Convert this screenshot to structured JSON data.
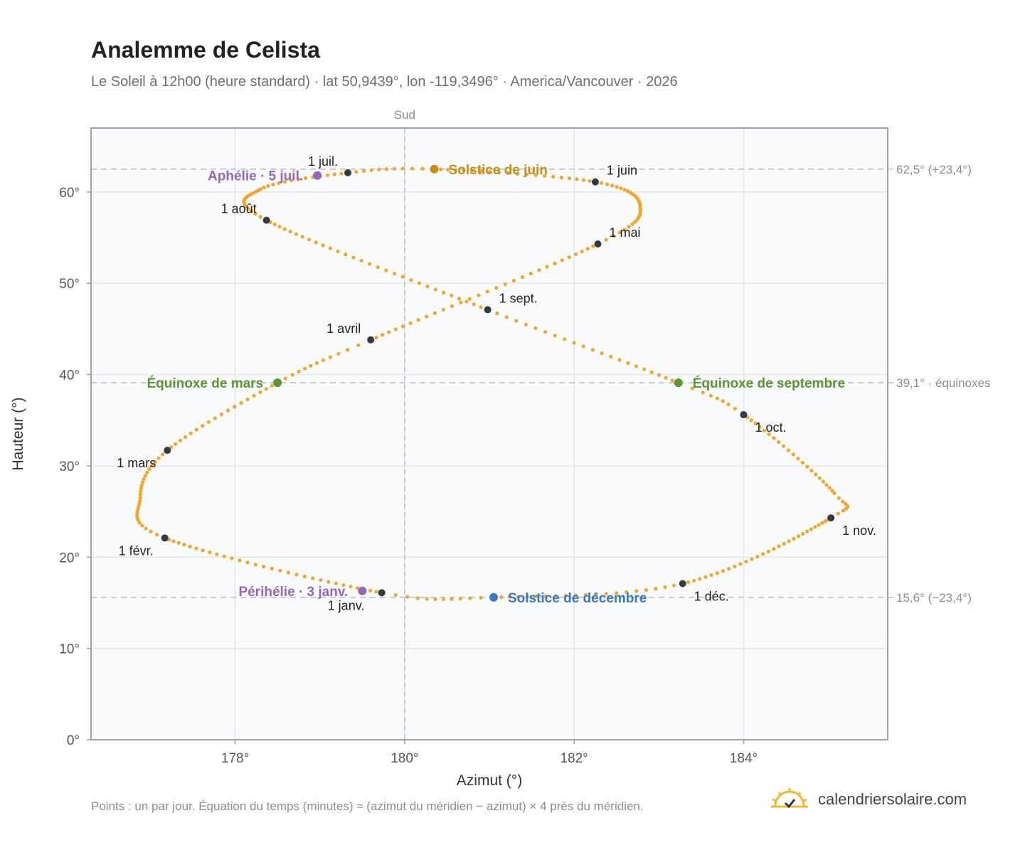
{
  "title": "Analemme de Celista",
  "subtitle": "Le Soleil à 12h00 (heure standard) · lat 50,9439°, lon -119,3496° · America/Vancouver · 2026",
  "footnote": "Points : un par jour. Équation du temps (minutes) ≈ (azimut du méridien − azimut) × 4 près du méridien.",
  "brand": {
    "name": "calendriersolaire.com",
    "icon": "sun-logo-icon"
  },
  "colors": {
    "curve": "#f2a62a",
    "month_marker": "#333a40",
    "solstice_june": "#c98d14",
    "solstice_december": "#3a78c0",
    "equinox": "#5c9634",
    "apsis": "#9467bd",
    "guide": "#b8bec6",
    "plot_bg": "#f8fafc"
  },
  "chart_data": {
    "type": "scatter",
    "xlabel": "Azimut (°)",
    "ylabel": "Hauteur (°)",
    "xlim": [
      176.3,
      185.7
    ],
    "ylim": [
      0,
      67
    ],
    "xticks": [
      {
        "value": 178,
        "label": "178°"
      },
      {
        "value": 180,
        "label": "180°"
      },
      {
        "value": 182,
        "label": "182°"
      },
      {
        "value": 184,
        "label": "184°"
      }
    ],
    "yticks": [
      {
        "value": 0,
        "label": "0°"
      },
      {
        "value": 10,
        "label": "10°"
      },
      {
        "value": 20,
        "label": "20°"
      },
      {
        "value": 30,
        "label": "30°"
      },
      {
        "value": 40,
        "label": "40°"
      },
      {
        "value": 50,
        "label": "50°"
      },
      {
        "value": 60,
        "label": "60°"
      }
    ],
    "grid": true,
    "meridian": {
      "x": 180,
      "label": "Sud"
    },
    "reference_lines": [
      {
        "y": 62.5,
        "label": "62,5° (+23,4°)"
      },
      {
        "y": 39.1,
        "label": "39,1° · équinoxes"
      },
      {
        "y": 15.6,
        "label": "15,6° (−23,4°)"
      }
    ],
    "daily_series": {
      "name": "daily-sun-position",
      "points_per_year": 365,
      "path_points": [
        {
          "day": 0,
          "x": 179.73,
          "y": 16.1
        },
        {
          "day": 31,
          "x": 177.17,
          "y": 22.1
        },
        {
          "day": 45,
          "x": 176.88,
          "y": 26.5
        },
        {
          "day": 59,
          "x": 177.2,
          "y": 31.7
        },
        {
          "day": 78,
          "x": 178.5,
          "y": 39.1
        },
        {
          "day": 90,
          "x": 179.6,
          "y": 43.8
        },
        {
          "day": 120,
          "x": 182.28,
          "y": 54.3
        },
        {
          "day": 135,
          "x": 182.78,
          "y": 58.4
        },
        {
          "day": 151,
          "x": 182.25,
          "y": 61.1
        },
        {
          "day": 171,
          "x": 180.35,
          "y": 62.5
        },
        {
          "day": 181,
          "x": 179.33,
          "y": 62.1
        },
        {
          "day": 195,
          "x": 178.3,
          "y": 60.3
        },
        {
          "day": 212,
          "x": 178.37,
          "y": 56.9
        },
        {
          "day": 243,
          "x": 180.98,
          "y": 47.1
        },
        {
          "day": 265,
          "x": 183.23,
          "y": 39.1
        },
        {
          "day": 273,
          "x": 184.0,
          "y": 35.6
        },
        {
          "day": 295,
          "x": 185.07,
          "y": 27.0
        },
        {
          "day": 304,
          "x": 185.03,
          "y": 24.3
        },
        {
          "day": 334,
          "x": 183.28,
          "y": 17.1
        },
        {
          "day": 354,
          "x": 181.05,
          "y": 15.6
        },
        {
          "day": 365,
          "x": 179.73,
          "y": 16.1
        }
      ]
    },
    "month_markers": [
      {
        "label": "1 janv.",
        "x": 179.73,
        "y": 16.1,
        "pos": "below-left"
      },
      {
        "label": "1 févr.",
        "x": 177.17,
        "y": 22.1,
        "pos": "below-left"
      },
      {
        "label": "1 mars",
        "x": 177.2,
        "y": 31.7,
        "pos": "below-left"
      },
      {
        "label": "1 avril",
        "x": 179.6,
        "y": 43.8,
        "pos": "above-left"
      },
      {
        "label": "1 mai",
        "x": 182.28,
        "y": 54.3,
        "pos": "above-right"
      },
      {
        "label": "1 juin",
        "x": 182.25,
        "y": 61.1,
        "pos": "above-right"
      },
      {
        "label": "1 juil.",
        "x": 179.33,
        "y": 62.1,
        "pos": "above-left"
      },
      {
        "label": "1 août",
        "x": 178.37,
        "y": 56.9,
        "pos": "above-left"
      },
      {
        "label": "1 sept.",
        "x": 180.98,
        "y": 47.1,
        "pos": "above-right"
      },
      {
        "label": "1 oct.",
        "x": 184.0,
        "y": 35.6,
        "pos": "below-right"
      },
      {
        "label": "1 nov.",
        "x": 185.03,
        "y": 24.3,
        "pos": "below-right"
      },
      {
        "label": "1 déc.",
        "x": 183.28,
        "y": 17.1,
        "pos": "below-right"
      }
    ],
    "events": [
      {
        "label": "Solstice de juin",
        "x": 180.35,
        "y": 62.5,
        "color": "#c98d14",
        "side": "right"
      },
      {
        "label": "Aphélie · 5 juil.",
        "x": 178.97,
        "y": 61.8,
        "color": "#9467bd",
        "side": "left"
      },
      {
        "label": "Équinoxe de mars",
        "x": 178.5,
        "y": 39.1,
        "color": "#5c9634",
        "side": "left"
      },
      {
        "label": "Équinoxe de septembre",
        "x": 183.23,
        "y": 39.1,
        "color": "#5c9634",
        "side": "right"
      },
      {
        "label": "Périhélie · 3 janv.",
        "x": 179.5,
        "y": 16.3,
        "color": "#9467bd",
        "side": "left"
      },
      {
        "label": "Solstice de décembre",
        "x": 181.05,
        "y": 15.6,
        "color": "#3a78c0",
        "side": "right"
      }
    ]
  }
}
